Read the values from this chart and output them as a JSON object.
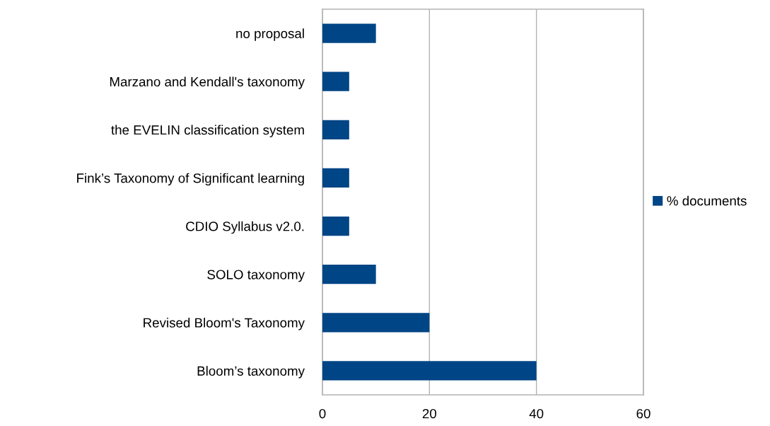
{
  "chart_data": {
    "type": "bar",
    "orientation": "horizontal",
    "categories": [
      "no proposal",
      "Marzano and Kendall's taxonomy",
      "the EVELIN classification system",
      "Fink’s Taxonomy of Significant learning",
      "CDIO Syllabus v2.0.",
      "SOLO taxonomy",
      "Revised Bloom's Taxonomy",
      "Bloom’s taxonomy"
    ],
    "series": [
      {
        "name": "% documents",
        "color": "#004586",
        "values": [
          10,
          5,
          5,
          5,
          5,
          10,
          20,
          40
        ]
      }
    ],
    "xlim": [
      0,
      60
    ],
    "xticks": [
      0,
      20,
      40,
      60
    ],
    "grid": "x",
    "legend": "right"
  }
}
